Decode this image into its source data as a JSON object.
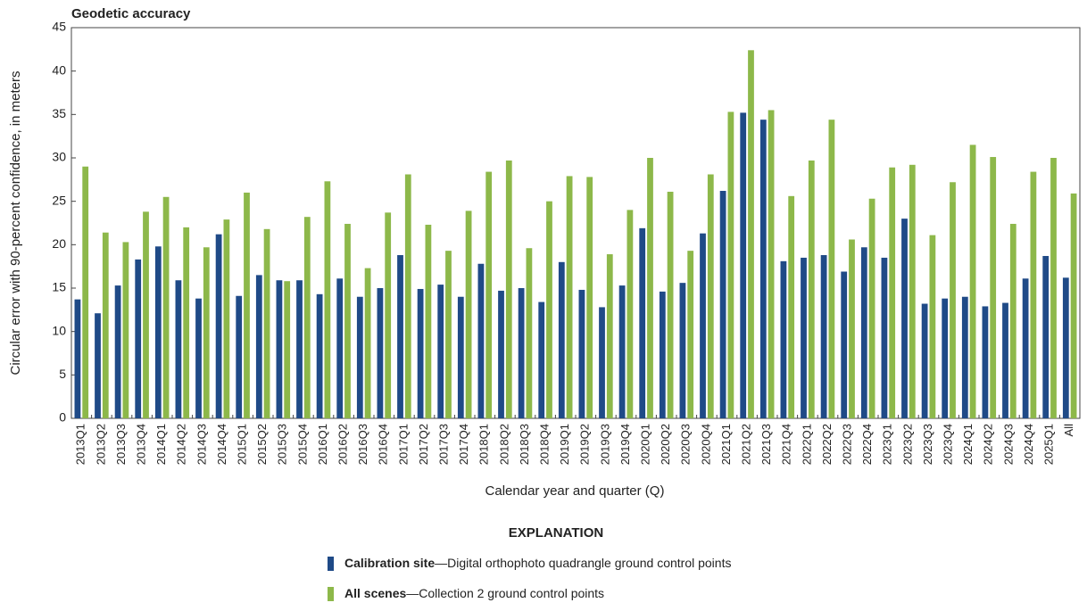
{
  "chart_data": {
    "type": "bar",
    "title": "Geodetic accuracy",
    "ylabel": "Circular error with 90-percent confidence, in meters",
    "xlabel": "Calendar year and quarter (Q)",
    "legend_title": "EXPLANATION",
    "categories": [
      "2013Q1",
      "2013Q2",
      "2013Q3",
      "2013Q4",
      "2014Q1",
      "2014Q2",
      "2014Q3",
      "2014Q4",
      "2015Q1",
      "2015Q2",
      "2015Q3",
      "2015Q4",
      "2016Q1",
      "2016Q2",
      "2016Q3",
      "2016Q4",
      "2017Q1",
      "2017Q2",
      "2017Q3",
      "2017Q4",
      "2018Q1",
      "2018Q2",
      "2018Q3",
      "2018Q4",
      "2019Q1",
      "2019Q2",
      "2019Q3",
      "2019Q4",
      "2020Q1",
      "2020Q2",
      "2020Q3",
      "2020Q4",
      "2021Q1",
      "2021Q2",
      "2021Q3",
      "2021Q4",
      "2022Q1",
      "2022Q2",
      "2022Q3",
      "2022Q4",
      "2023Q1",
      "2023Q2",
      "2023Q3",
      "2023Q4",
      "2024Q1",
      "2024Q2",
      "2024Q3",
      "2024Q4",
      "2025Q1",
      "All"
    ],
    "series": [
      {
        "name": "Calibration site",
        "description": "—Digital orthophoto quadrangle ground control points",
        "color": "#1f4a87",
        "values": [
          13.7,
          12.1,
          15.3,
          18.3,
          19.8,
          15.9,
          13.8,
          21.2,
          14.1,
          16.5,
          15.9,
          15.9,
          14.3,
          16.1,
          14.0,
          15.0,
          18.8,
          14.9,
          15.4,
          14.0,
          17.8,
          14.7,
          15.0,
          13.4,
          18.0,
          14.8,
          12.8,
          15.3,
          21.9,
          14.6,
          15.6,
          21.3,
          26.2,
          35.2,
          34.4,
          18.1,
          18.5,
          18.8,
          16.9,
          19.7,
          18.5,
          23.0,
          13.2,
          13.8,
          14.0,
          12.9,
          13.3,
          16.1,
          18.7,
          16.2
        ]
      },
      {
        "name": "All scenes",
        "description": "—Collection 2 ground control points",
        "color": "#8db84a",
        "values": [
          29.0,
          21.4,
          20.3,
          23.8,
          25.5,
          22.0,
          19.7,
          22.9,
          26.0,
          21.8,
          15.8,
          23.2,
          27.3,
          22.4,
          17.3,
          23.7,
          28.1,
          22.3,
          19.3,
          23.9,
          28.4,
          29.7,
          19.6,
          25.0,
          27.9,
          27.8,
          18.9,
          24.0,
          30.0,
          26.1,
          19.3,
          28.1,
          35.3,
          42.4,
          35.5,
          25.6,
          29.7,
          34.4,
          20.6,
          25.3,
          28.9,
          29.2,
          21.1,
          27.2,
          31.5,
          30.1,
          22.4,
          28.4,
          30.0,
          25.9
        ]
      }
    ],
    "ylim": [
      0,
      45
    ],
    "yticks": [
      0,
      5,
      10,
      15,
      20,
      25,
      30,
      35,
      40,
      45
    ]
  }
}
